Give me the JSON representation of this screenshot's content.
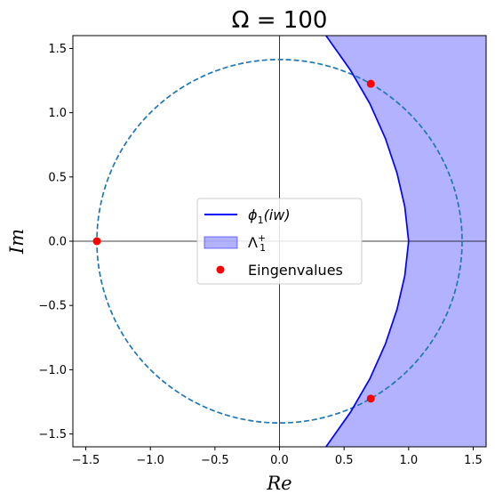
{
  "chart_data": {
    "type": "scatter",
    "title": "Ω = 100",
    "xlabel": "Re",
    "ylabel": "Im",
    "xlim": [
      -1.6,
      1.6
    ],
    "ylim": [
      -1.6,
      1.6
    ],
    "xticks": [
      "−1.5",
      "−1.0",
      "−0.5",
      "0.0",
      "0.5",
      "1.0",
      "1.5"
    ],
    "xtick_values": [
      -1.5,
      -1.0,
      -0.5,
      0.0,
      0.5,
      1.0,
      1.5
    ],
    "yticks": [
      "−1.5",
      "−1.0",
      "−0.5",
      "0.0",
      "0.5",
      "1.0",
      "1.5"
    ],
    "ytick_values": [
      -1.5,
      -1.0,
      -0.5,
      0.0,
      0.5,
      1.0,
      1.5
    ],
    "grid": false,
    "legend_position": "center",
    "zero_lines": true,
    "series": [
      {
        "name": "ϕ₁(iw)",
        "kind": "line",
        "color": "#0000ff",
        "x": [
          0.36,
          0.55,
          0.7,
          0.82,
          0.91,
          0.97,
          1.0,
          0.97,
          0.91,
          0.82,
          0.7,
          0.55,
          0.36
        ],
        "y": [
          1.6,
          1.33,
          1.07,
          0.8,
          0.53,
          0.27,
          0.0,
          -0.27,
          -0.53,
          -0.8,
          -1.07,
          -1.33,
          -1.6
        ]
      },
      {
        "name": "Λ₁⁺",
        "kind": "area",
        "color": "#0000ff",
        "opacity": 0.3,
        "description_bound": "region to the right of ϕ₁(iw)"
      },
      {
        "name": "Eingenvalues",
        "kind": "scatter",
        "color": "#ff0000",
        "x": [
          -1.414,
          0.707,
          0.707
        ],
        "y": [
          0.0,
          1.225,
          -1.225
        ]
      },
      {
        "name": "",
        "kind": "circle",
        "style": "dashed",
        "color": "#1f77b4",
        "center": [
          0,
          0
        ],
        "radius": 1.414
      }
    ],
    "legend": [
      {
        "label_main": "ϕ",
        "label_sub": "1",
        "label_rest": "(iw)",
        "kind": "line"
      },
      {
        "label_main": "Λ",
        "label_sub": "1",
        "label_sup": "+",
        "kind": "area"
      },
      {
        "label_main": "Eingenvalues",
        "kind": "scatter"
      }
    ]
  }
}
